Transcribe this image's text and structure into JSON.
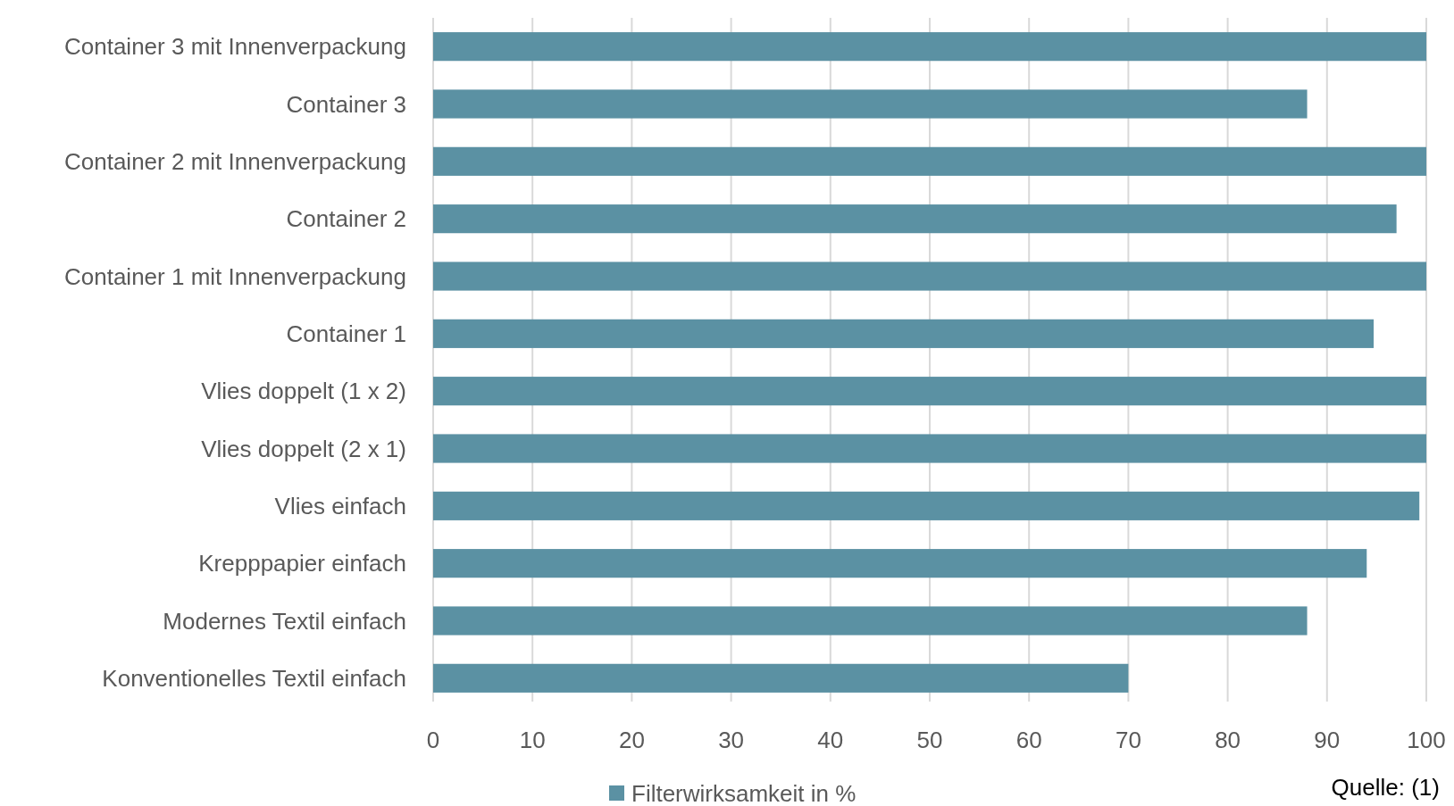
{
  "chart_data": {
    "type": "bar",
    "orientation": "horizontal",
    "categories": [
      "Container 3 mit Innenverpackung",
      "Container 3",
      "Container 2 mit Innenverpackung",
      "Container 2",
      "Container 1 mit Innenverpackung",
      "Container 1",
      "Vlies doppelt (1 x 2)",
      "Vlies doppelt (2 x 1)",
      "Vlies einfach",
      "Krepppapier einfach",
      "Modernes Textil einfach",
      "Konventionelles Textil einfach"
    ],
    "series": [
      {
        "name": "Filterwirksamkeit in %",
        "color": "#5b91a3",
        "values": [
          100,
          88,
          100,
          97,
          100,
          94.7,
          100,
          100,
          99.3,
          94,
          88,
          70
        ]
      }
    ],
    "xlim": [
      0,
      100
    ],
    "xticks": [
      0,
      10,
      20,
      30,
      40,
      50,
      60,
      70,
      80,
      90,
      100
    ],
    "grid": "x",
    "legend": "bottom",
    "annotations": [
      "Quelle: (1)"
    ]
  }
}
